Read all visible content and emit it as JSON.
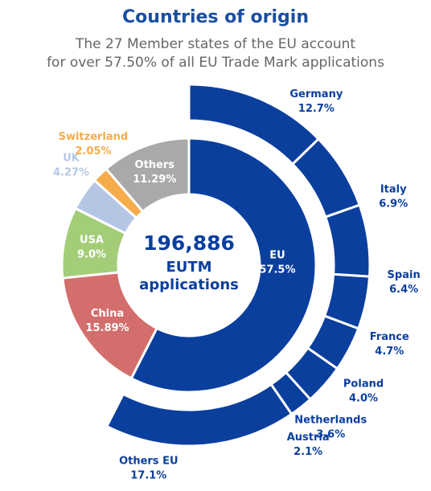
{
  "chart_data": {
    "type": "sunburst",
    "title": "Countries of origin",
    "subtitle": [
      "The 27 Member states of the EU account",
      "for over 57.50% of all EU Trade Mark applications"
    ],
    "center_text": [
      "196,886",
      "EUTM",
      "applications"
    ],
    "rings": [
      {
        "categories": [
          "EU",
          "China",
          "USA",
          "UK",
          "Switzerland",
          "Others"
        ],
        "values": [
          57.5,
          15.89,
          9.0,
          4.27,
          2.05,
          11.29
        ],
        "value_labels": [
          "57.5%",
          "15.89%",
          "9.0%",
          "4.27%",
          "2.05%",
          "11.29%"
        ],
        "colors": [
          "#0b3f9e",
          "#d46e6c",
          "#a3cd77",
          "#b5c6e5",
          "#f6ac4b",
          "#a9a9a9"
        ]
      },
      {
        "categories": [
          "Germany",
          "Italy",
          "Spain",
          "France",
          "Poland",
          "Netherlands",
          "Austria",
          "Others EU"
        ],
        "values": [
          12.7,
          6.9,
          6.4,
          4.7,
          4.0,
          3.6,
          2.1,
          17.1
        ],
        "value_labels": [
          "12.7%",
          "6.9%",
          "6.4%",
          "4.7%",
          "4.0%",
          "3.6%",
          "2.1%",
          "17.1%"
        ],
        "color": "#0b3f9e"
      }
    ]
  }
}
